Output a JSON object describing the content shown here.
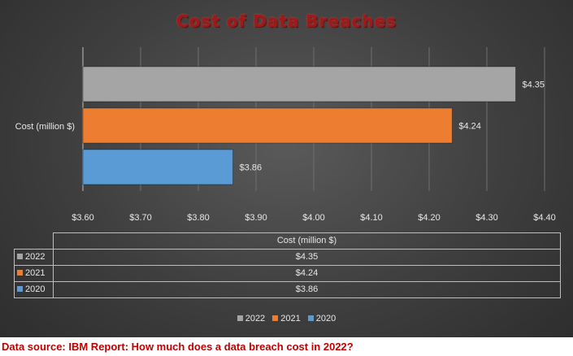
{
  "chart_data": {
    "type": "bar",
    "orientation": "horizontal",
    "title": "Cost of Data Breaches",
    "category_label": "Cost (million $)",
    "categories": [
      "Cost (million $)"
    ],
    "series": [
      {
        "name": "2022",
        "value": 4.35,
        "label": "$4.35",
        "color": "#a5a5a5"
      },
      {
        "name": "2021",
        "value": 4.24,
        "label": "$4.24",
        "color": "#ed7d31"
      },
      {
        "name": "2020",
        "value": 3.86,
        "label": "$3.86",
        "color": "#5b9bd5"
      }
    ],
    "xlim": [
      3.6,
      4.4
    ],
    "xticks": [
      "$3.60",
      "$3.70",
      "$3.80",
      "$3.90",
      "$4.00",
      "$4.10",
      "$4.20",
      "$4.30",
      "$4.40"
    ],
    "xtick_values": [
      3.6,
      3.7,
      3.8,
      3.9,
      4.0,
      4.1,
      4.2,
      4.3,
      4.4
    ],
    "grid": true,
    "legend_position": "bottom",
    "data_table": {
      "header": "Cost (million $)",
      "rows": [
        {
          "series": "2022",
          "value": "$4.35"
        },
        {
          "series": "2021",
          "value": "$4.24"
        },
        {
          "series": "2020",
          "value": "$3.86"
        }
      ]
    }
  },
  "footer": "Data source: IBM Report: How much does a data breach cost in 2022?"
}
